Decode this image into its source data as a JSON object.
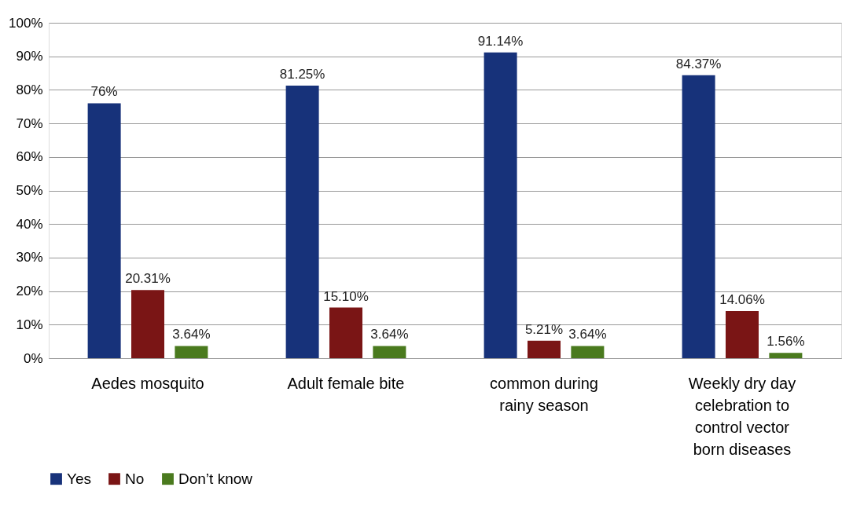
{
  "chart_data": {
    "type": "bar",
    "categories": [
      "Aedes mosquito",
      "Adult female bite",
      "common during rainy season",
      "Weekly dry day celebration to control vector born diseases"
    ],
    "series": [
      {
        "name": "Yes",
        "color": "#17327a",
        "values": [
          76,
          81.25,
          91.14,
          84.37
        ],
        "value_labels": [
          "76%",
          "81.25%",
          "91.14%",
          "84.37%"
        ]
      },
      {
        "name": "No",
        "color": "#7a1515",
        "values": [
          20.31,
          15.1,
          5.21,
          14.06
        ],
        "value_labels": [
          "20.31%",
          "15.10%",
          "5.21%",
          "14.06%"
        ]
      },
      {
        "name": "Don’t know",
        "color": "#4a7a1e",
        "values": [
          3.64,
          3.64,
          3.64,
          1.56
        ],
        "value_labels": [
          "3.64%",
          "3.64%",
          "3.64%",
          "1.56%"
        ]
      }
    ],
    "ylim": [
      0,
      100
    ],
    "yticks": [
      {
        "value": 0,
        "label": "0%"
      },
      {
        "value": 10,
        "label": "10%"
      },
      {
        "value": 20,
        "label": "20%"
      },
      {
        "value": 30,
        "label": "30%"
      },
      {
        "value": 40,
        "label": "40%"
      },
      {
        "value": 50,
        "label": "50%"
      },
      {
        "value": 60,
        "label": "60%"
      },
      {
        "value": 70,
        "label": "70%"
      },
      {
        "value": 80,
        "label": "80%"
      },
      {
        "value": 90,
        "label": "90%"
      },
      {
        "value": 100,
        "label": "100%"
      }
    ],
    "grid": "y",
    "legend": "bottom"
  }
}
